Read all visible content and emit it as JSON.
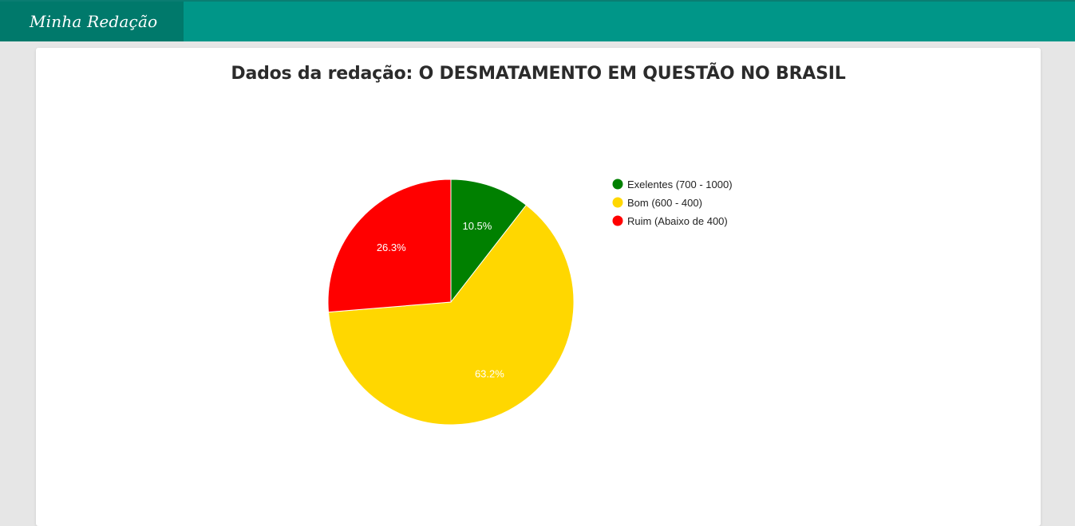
{
  "header": {
    "brand": "Minha Redação",
    "bar_color": "#009688",
    "brand_bg_color": "#00796b"
  },
  "page": {
    "title": "Dados da redação: O DESMATAMENTO EM QUESTÃO NO BRASIL"
  },
  "chart_data": {
    "type": "pie",
    "title": "",
    "legend_position": "right",
    "series": [
      {
        "name": "Exelentes (700 - 1000)",
        "value": 10.5,
        "label": "10.5%",
        "color": "#008000"
      },
      {
        "name": "Bom (600 - 400)",
        "value": 63.2,
        "label": "63.2%",
        "color": "#ffd700"
      },
      {
        "name": "Ruim (Abaixo de 400)",
        "value": 26.3,
        "label": "26.3%",
        "color": "#ff0000"
      }
    ]
  }
}
